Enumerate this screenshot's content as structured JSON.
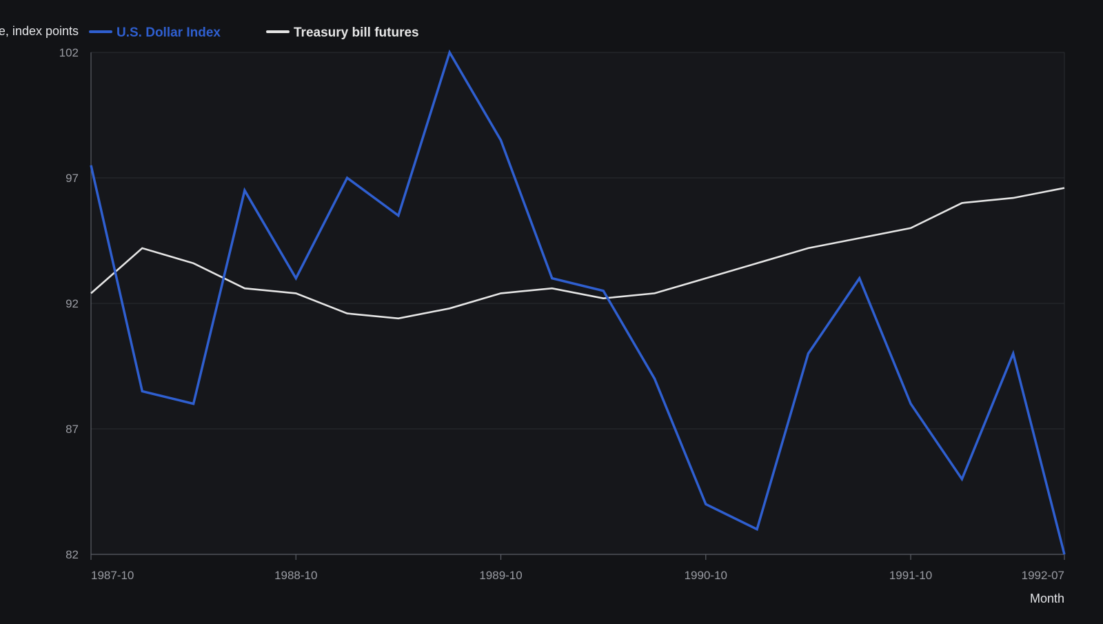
{
  "chart_data": {
    "type": "line",
    "ylabel": "Price, index points",
    "xlabel": "Month",
    "ylim": [
      82,
      102
    ],
    "y_ticks": [
      82,
      87,
      92,
      97,
      102
    ],
    "x_ticks": [
      "1987-10",
      "1988-10",
      "1989-10",
      "1990-10",
      "1991-10",
      "1992-07"
    ],
    "grid": true,
    "legend_position": "top-left",
    "x": [
      "1987-10",
      "1988-01",
      "1988-04",
      "1988-07",
      "1988-10",
      "1989-01",
      "1989-04",
      "1989-07",
      "1989-10",
      "1990-01",
      "1990-04",
      "1990-07",
      "1990-10",
      "1991-01",
      "1991-04",
      "1991-07",
      "1991-10",
      "1992-01",
      "1992-04",
      "1992-07"
    ],
    "series": [
      {
        "name": "U.S. Dollar Index",
        "color": "#2f5fd0",
        "values": [
          97.5,
          88.5,
          88.0,
          96.5,
          93.0,
          97.0,
          95.5,
          102.0,
          98.5,
          93.0,
          92.5,
          89.0,
          84.0,
          83.0,
          90.0,
          93.0,
          88.0,
          85.0,
          90.0,
          82.0
        ]
      },
      {
        "name": "Treasury bill futures",
        "color": "#e6e6e6",
        "values": [
          92.4,
          94.2,
          93.6,
          92.6,
          92.4,
          91.6,
          91.4,
          91.8,
          92.4,
          92.6,
          92.2,
          92.4,
          93.0,
          93.6,
          94.2,
          94.6,
          95.0,
          96.0,
          96.2,
          96.6
        ]
      }
    ]
  },
  "colors": {
    "background": "#121316",
    "plot_background": "#16171b",
    "grid": "#2a2c31",
    "axis": "#5b5e66"
  }
}
